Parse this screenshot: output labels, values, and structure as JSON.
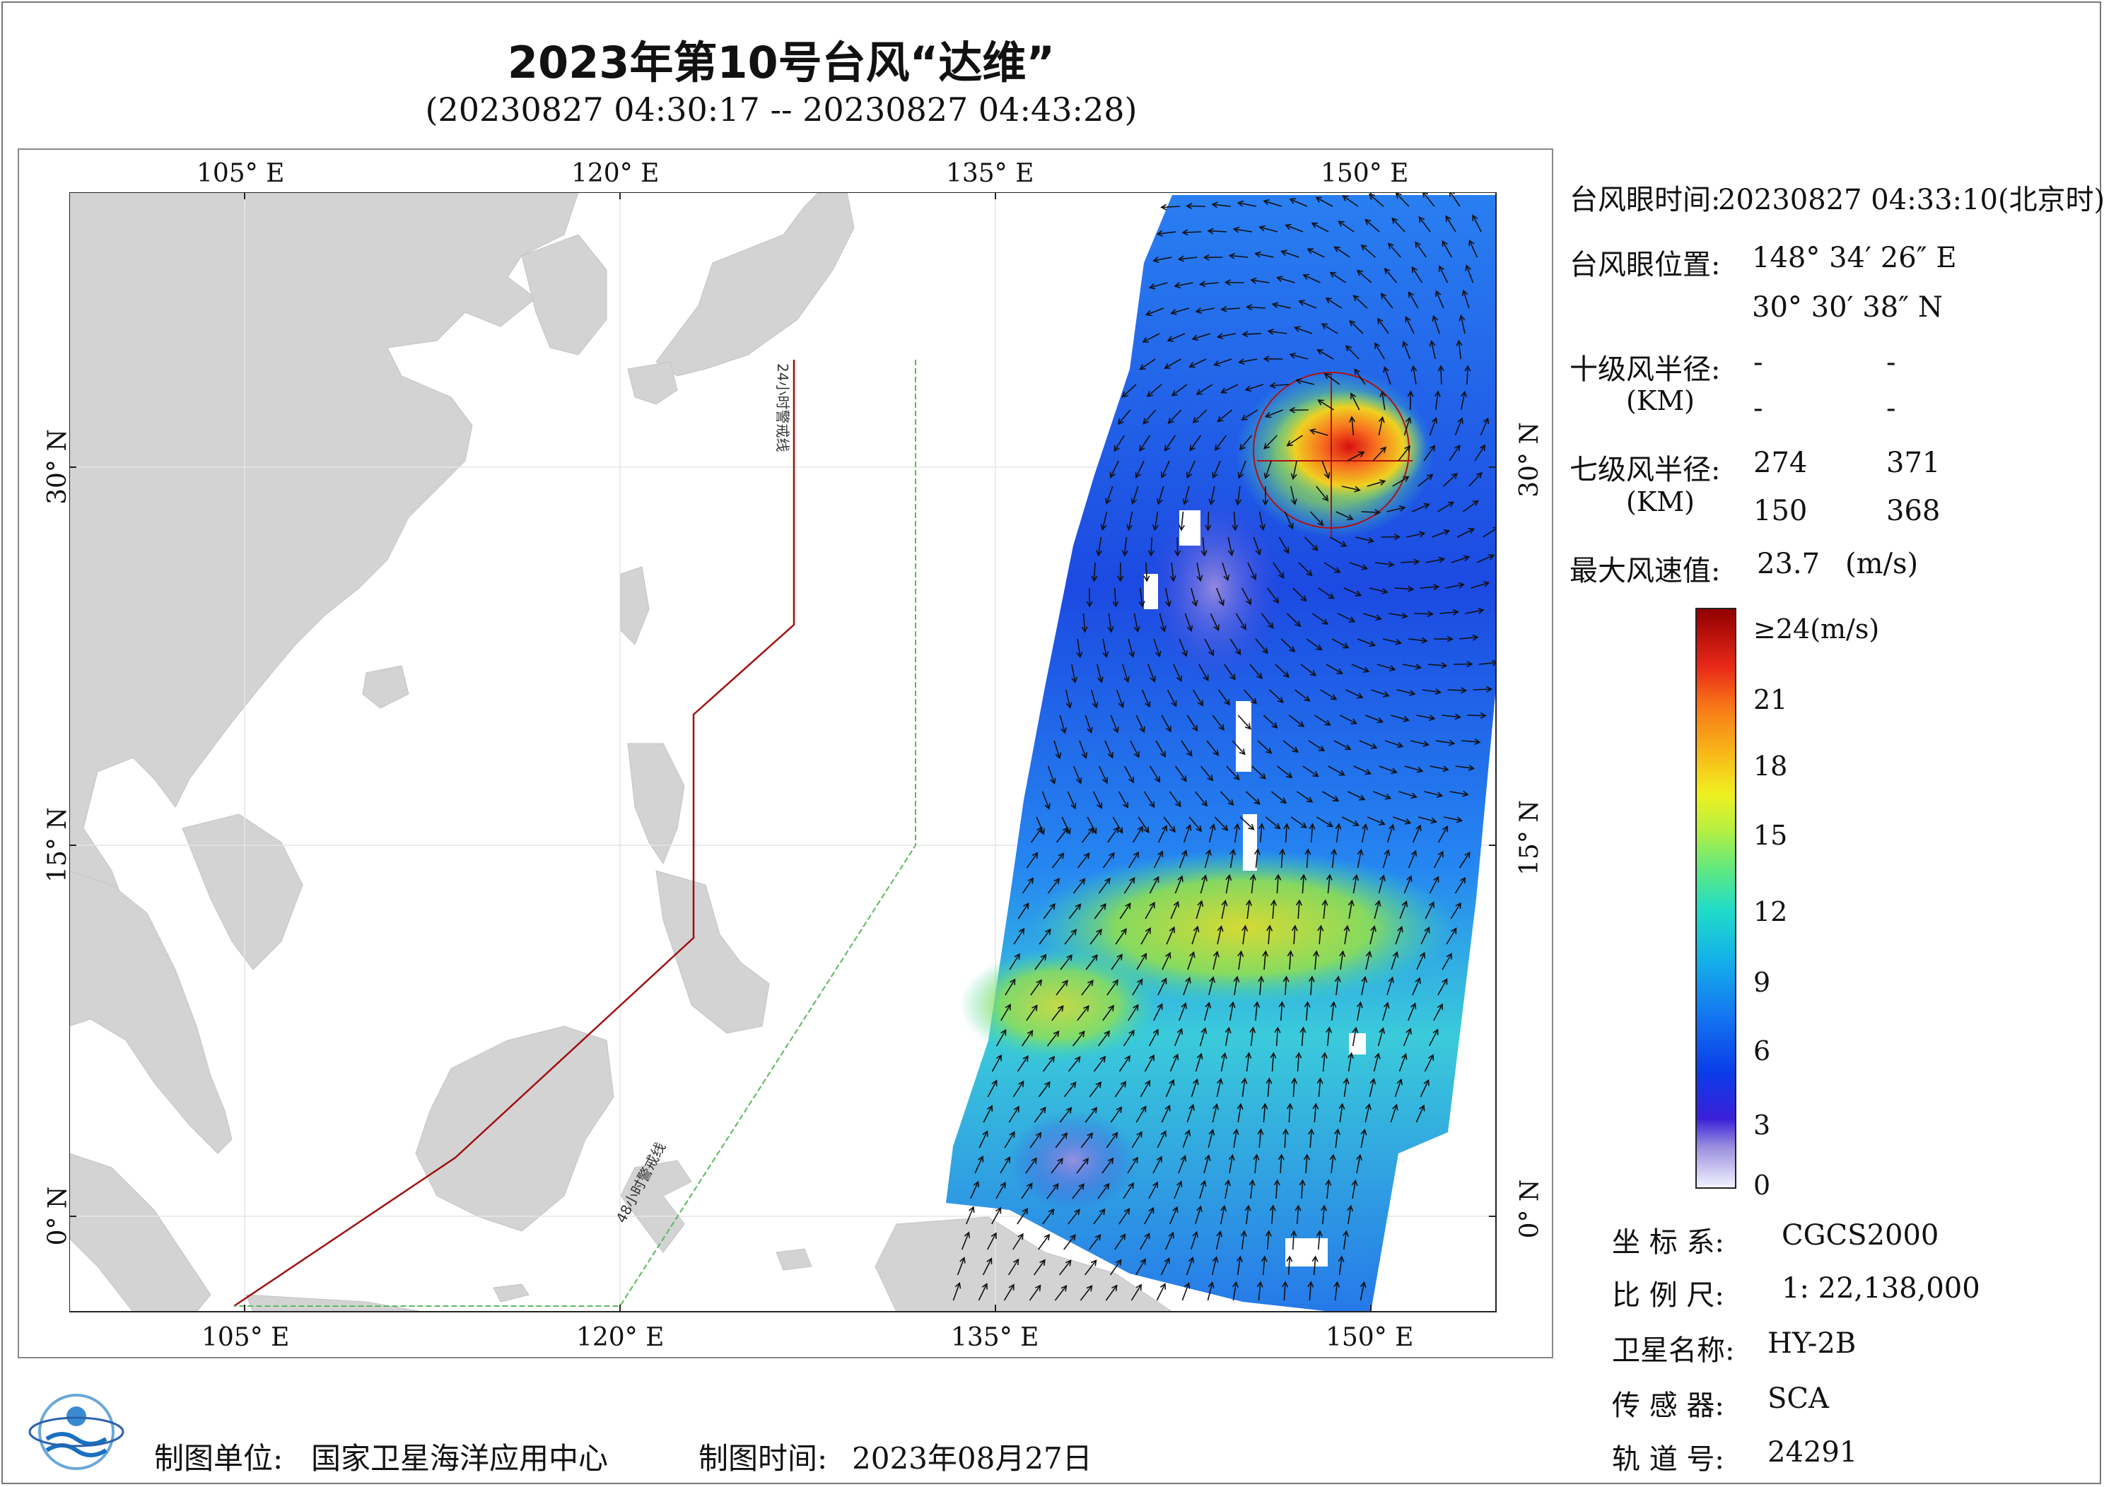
{
  "title": "2023年第10号台风“达维”",
  "subtitle": "(20230827 04:30:17 -- 20230827 04:43:28)",
  "axes": {
    "top_lon": [
      "105° E",
      "120° E",
      "135° E",
      "150° E"
    ],
    "bottom_lon": [
      "105° E",
      "120° E",
      "135° E",
      "150° E"
    ],
    "left_lat": [
      "30° N",
      "15° N",
      "0° N"
    ],
    "right_lat": [
      "30° N",
      "15° N",
      "0° N"
    ]
  },
  "warning_lines": {
    "line24_label": "24小时警戒线",
    "line48_label": "48小时警戒线",
    "line24_color": "#a01010",
    "line48_color": "#5cb85c"
  },
  "info": {
    "eye_time_label": "台风眼时间:",
    "eye_time_value": "20230827 04:33:10(北京时)",
    "eye_pos_label": "台风眼位置:",
    "eye_lon": "148° 34′ 26″ E",
    "eye_lat": "30° 30′ 38″ N",
    "r10_label": "十级风半径:",
    "r10_unit": "(KM)",
    "r10_values": [
      "-",
      "-",
      "-",
      "-"
    ],
    "r7_label": "七级风半径:",
    "r7_unit": "(KM)",
    "r7_values": [
      "274",
      "371",
      "150",
      "368"
    ],
    "max_wind_label": "最大风速值:",
    "max_wind_value": "23.7",
    "max_wind_unit": "(m/s)"
  },
  "colorbar": {
    "labels": [
      "≥24(m/s)",
      "21",
      "18",
      "15",
      "12",
      "9",
      "6",
      "3",
      "0"
    ],
    "colors": [
      "#f0f0ff",
      "#9c90e0",
      "#3a20d8",
      "#0a3ce8",
      "#1478f0",
      "#14b4e8",
      "#20dcc8",
      "#60e880",
      "#b8f040",
      "#f0f020",
      "#f8b818",
      "#f87818",
      "#e82818",
      "#900000"
    ]
  },
  "meta": {
    "coord_label": "坐 标 系:",
    "coord_value": "CGCS2000",
    "scale_label": "比 例 尺:",
    "scale_value": "1: 22,138,000",
    "sat_label": "卫星名称:",
    "sat_value": "HY-2B",
    "sensor_label": "传 感 器:",
    "sensor_value": "SCA",
    "orbit_label": "轨 道 号:",
    "orbit_value": "24291"
  },
  "footer": {
    "unit_label": "制图单位:",
    "unit_value": "国家卫星海洋应用中心",
    "time_label": "制图时间:",
    "time_value": "2023年08月27日"
  }
}
